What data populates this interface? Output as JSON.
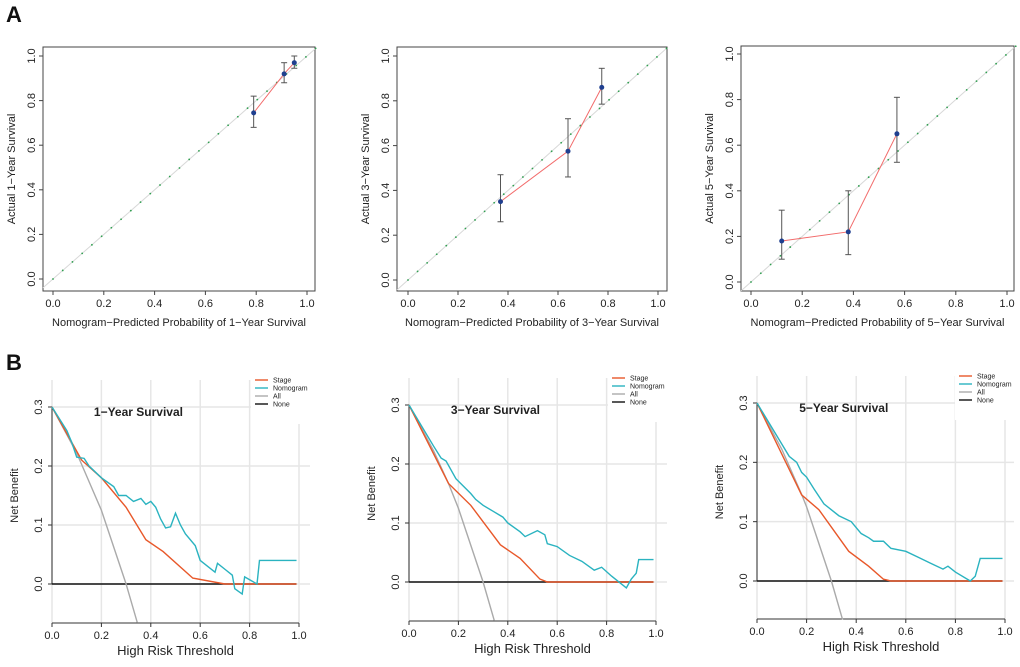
{
  "panel_labels": [
    "A",
    "B"
  ],
  "chart_data": [
    {
      "type": "scatter",
      "panel": "A",
      "xlabel": "Nomogram−Predicted Probability of 1−Year Survival",
      "ylabel": "Actual 1−Year Survival",
      "xlim": [
        0,
        1
      ],
      "ylim": [
        0,
        1
      ],
      "xticks": [
        "0.0",
        "0.2",
        "0.4",
        "0.6",
        "0.8",
        "1.0"
      ],
      "yticks": [
        "0.0",
        "0.2",
        "0.4",
        "0.6",
        "0.8",
        "1.0"
      ],
      "points": [
        {
          "x": 0.79,
          "y": 0.745,
          "lo": 0.68,
          "hi": 0.82
        },
        {
          "x": 0.91,
          "y": 0.92,
          "lo": 0.88,
          "hi": 0.97
        },
        {
          "x": 0.95,
          "y": 0.97,
          "lo": 0.945,
          "hi": 1.0
        }
      ],
      "colors": {
        "line": "#f26b6b",
        "point": "#1f3f8f",
        "ideal": "#2e9e4f"
      }
    },
    {
      "type": "scatter",
      "panel": "A",
      "xlabel": "Nomogram−Predicted Probability of 3−Year Survival",
      "ylabel": "Actual 3−Year Survival",
      "xlim": [
        0,
        1
      ],
      "ylim": [
        0,
        1
      ],
      "xticks": [
        "0.0",
        "0.2",
        "0.4",
        "0.6",
        "0.8",
        "1.0"
      ],
      "yticks": [
        "0.0",
        "0.2",
        "0.4",
        "0.6",
        "0.8",
        "1.0"
      ],
      "points": [
        {
          "x": 0.37,
          "y": 0.35,
          "lo": 0.26,
          "hi": 0.47
        },
        {
          "x": 0.64,
          "y": 0.575,
          "lo": 0.46,
          "hi": 0.72
        },
        {
          "x": 0.775,
          "y": 0.86,
          "lo": 0.785,
          "hi": 0.945
        }
      ],
      "colors": {
        "line": "#f26b6b",
        "point": "#1f3f8f",
        "ideal": "#2e9e4f"
      }
    },
    {
      "type": "scatter",
      "panel": "A",
      "xlabel": "Nomogram−Predicted Probability of 5−Year Survival",
      "ylabel": "Actual 5−Year Survival",
      "xlim": [
        0,
        1
      ],
      "ylim": [
        0,
        1
      ],
      "xticks": [
        "0.0",
        "0.2",
        "0.4",
        "0.6",
        "0.8",
        "1.0"
      ],
      "yticks": [
        "0.0",
        "0.2",
        "0.4",
        "0.6",
        "0.8",
        "1.0"
      ],
      "points": [
        {
          "x": 0.12,
          "y": 0.18,
          "lo": 0.1,
          "hi": 0.315
        },
        {
          "x": 0.38,
          "y": 0.22,
          "lo": 0.12,
          "hi": 0.4
        },
        {
          "x": 0.57,
          "y": 0.65,
          "lo": 0.525,
          "hi": 0.81
        }
      ],
      "colors": {
        "line": "#f26b6b",
        "point": "#1f3f8f",
        "ideal": "#2e9e4f"
      }
    },
    {
      "type": "line",
      "panel": "B",
      "title": "1−Year Survival",
      "xlabel": "High Risk Threshold",
      "ylabel": "Net Benefit",
      "xlim": [
        0,
        1
      ],
      "ylim": [
        -0.065,
        0.3
      ],
      "xticks": [
        "0.0",
        "0.2",
        "0.4",
        "0.6",
        "0.8",
        "1.0"
      ],
      "yticks": [
        "0.0",
        "0.1",
        "0.2",
        "0.3"
      ],
      "grid": true,
      "legend": "top-right",
      "series": [
        {
          "name": "Stage",
          "color": "#e8582a",
          "points": [
            [
              0,
              0.3
            ],
            [
              0.12,
              0.21
            ],
            [
              0.2,
              0.18
            ],
            [
              0.3,
              0.13
            ],
            [
              0.38,
              0.075
            ],
            [
              0.45,
              0.055
            ],
            [
              0.57,
              0.01
            ],
            [
              0.7,
              0
            ],
            [
              0.99,
              0
            ]
          ]
        },
        {
          "name": "Nomogram",
          "color": "#2ab3c0",
          "points": [
            [
              0,
              0.3
            ],
            [
              0.06,
              0.26
            ],
            [
              0.08,
              0.24
            ],
            [
              0.1,
              0.215
            ],
            [
              0.13,
              0.213
            ],
            [
              0.15,
              0.2
            ],
            [
              0.2,
              0.18
            ],
            [
              0.25,
              0.165
            ],
            [
              0.27,
              0.15
            ],
            [
              0.3,
              0.15
            ],
            [
              0.33,
              0.14
            ],
            [
              0.36,
              0.145
            ],
            [
              0.38,
              0.135
            ],
            [
              0.4,
              0.14
            ],
            [
              0.42,
              0.13
            ],
            [
              0.44,
              0.11
            ],
            [
              0.46,
              0.095
            ],
            [
              0.48,
              0.097
            ],
            [
              0.5,
              0.12
            ],
            [
              0.52,
              0.1
            ],
            [
              0.54,
              0.085
            ],
            [
              0.58,
              0.065
            ],
            [
              0.6,
              0.04
            ],
            [
              0.66,
              0.02
            ],
            [
              0.67,
              0.035
            ],
            [
              0.7,
              0.025
            ],
            [
              0.73,
              0.015
            ],
            [
              0.74,
              -0.008
            ],
            [
              0.77,
              -0.017
            ],
            [
              0.78,
              0.012
            ],
            [
              0.83,
              0
            ],
            [
              0.84,
              0.04
            ],
            [
              0.99,
              0.04
            ]
          ]
        },
        {
          "name": "All",
          "color": "#aaaaaa",
          "points": [
            [
              0,
              0.3
            ],
            [
              0.1,
              0.222
            ],
            [
              0.2,
              0.125
            ],
            [
              0.3,
              0
            ],
            [
              0.345,
              -0.065
            ]
          ]
        },
        {
          "name": "None",
          "color": "#111111",
          "points": [
            [
              0,
              0
            ],
            [
              0.99,
              0
            ]
          ]
        }
      ]
    },
    {
      "type": "line",
      "panel": "B",
      "title": "3−Year Survival",
      "xlabel": "High Risk Threshold",
      "ylabel": "Net Benefit",
      "xlim": [
        0,
        1
      ],
      "ylim": [
        -0.065,
        0.3
      ],
      "xticks": [
        "0.0",
        "0.2",
        "0.4",
        "0.6",
        "0.8",
        "1.0"
      ],
      "yticks": [
        "0.0",
        "0.1",
        "0.2",
        "0.3"
      ],
      "grid": true,
      "legend": "top-right",
      "series": [
        {
          "name": "Stage",
          "color": "#e8582a",
          "points": [
            [
              0,
              0.3
            ],
            [
              0.16,
              0.167
            ],
            [
              0.25,
              0.13
            ],
            [
              0.37,
              0.063
            ],
            [
              0.45,
              0.04
            ],
            [
              0.53,
              0.005
            ],
            [
              0.56,
              0
            ],
            [
              0.99,
              0
            ]
          ]
        },
        {
          "name": "Nomogram",
          "color": "#2ab3c0",
          "points": [
            [
              0,
              0.3
            ],
            [
              0.1,
              0.23
            ],
            [
              0.13,
              0.21
            ],
            [
              0.15,
              0.205
            ],
            [
              0.19,
              0.175
            ],
            [
              0.25,
              0.15
            ],
            [
              0.27,
              0.14
            ],
            [
              0.3,
              0.13
            ],
            [
              0.34,
              0.12
            ],
            [
              0.38,
              0.11
            ],
            [
              0.4,
              0.1
            ],
            [
              0.45,
              0.085
            ],
            [
              0.47,
              0.077
            ],
            [
              0.52,
              0.087
            ],
            [
              0.55,
              0.08
            ],
            [
              0.56,
              0.065
            ],
            [
              0.6,
              0.06
            ],
            [
              0.65,
              0.045
            ],
            [
              0.7,
              0.035
            ],
            [
              0.75,
              0.02
            ],
            [
              0.78,
              0.025
            ],
            [
              0.82,
              0.01
            ],
            [
              0.88,
              -0.01
            ],
            [
              0.9,
              0.005
            ],
            [
              0.92,
              0.015
            ],
            [
              0.93,
              0.038
            ],
            [
              0.99,
              0.038
            ]
          ]
        },
        {
          "name": "All",
          "color": "#aaaaaa",
          "points": [
            [
              0,
              0.3
            ],
            [
              0.1,
              0.222
            ],
            [
              0.16,
              0.167
            ],
            [
              0.2,
              0.125
            ],
            [
              0.3,
              0
            ],
            [
              0.345,
              -0.065
            ]
          ]
        },
        {
          "name": "None",
          "color": "#111111",
          "points": [
            [
              0,
              0
            ],
            [
              0.99,
              0
            ]
          ]
        }
      ]
    },
    {
      "type": "line",
      "panel": "B",
      "title": "5−Year Survival",
      "xlabel": "High Risk Threshold",
      "ylabel": "Net Benefit",
      "xlim": [
        0,
        1
      ],
      "ylim": [
        -0.065,
        0.3
      ],
      "xticks": [
        "0.0",
        "0.2",
        "0.4",
        "0.6",
        "0.8",
        "1.0"
      ],
      "yticks": [
        "0.0",
        "0.1",
        "0.2",
        "0.3"
      ],
      "grid": true,
      "legend": "top-right",
      "series": [
        {
          "name": "Stage",
          "color": "#e8582a",
          "points": [
            [
              0,
              0.3
            ],
            [
              0.18,
              0.145
            ],
            [
              0.25,
              0.12
            ],
            [
              0.37,
              0.05
            ],
            [
              0.45,
              0.025
            ],
            [
              0.51,
              0.003
            ],
            [
              0.54,
              0
            ],
            [
              0.99,
              0
            ]
          ]
        },
        {
          "name": "Nomogram",
          "color": "#2ab3c0",
          "points": [
            [
              0,
              0.3
            ],
            [
              0.13,
              0.21
            ],
            [
              0.16,
              0.2
            ],
            [
              0.18,
              0.183
            ],
            [
              0.2,
              0.175
            ],
            [
              0.23,
              0.155
            ],
            [
              0.27,
              0.13
            ],
            [
              0.3,
              0.12
            ],
            [
              0.33,
              0.11
            ],
            [
              0.38,
              0.1
            ],
            [
              0.42,
              0.08
            ],
            [
              0.45,
              0.073
            ],
            [
              0.47,
              0.067
            ],
            [
              0.51,
              0.067
            ],
            [
              0.54,
              0.055
            ],
            [
              0.6,
              0.05
            ],
            [
              0.65,
              0.04
            ],
            [
              0.7,
              0.03
            ],
            [
              0.75,
              0.02
            ],
            [
              0.77,
              0.025
            ],
            [
              0.8,
              0.015
            ],
            [
              0.86,
              0
            ],
            [
              0.88,
              0.008
            ],
            [
              0.9,
              0.038
            ],
            [
              0.99,
              0.038
            ]
          ]
        },
        {
          "name": "All",
          "color": "#aaaaaa",
          "points": [
            [
              0,
              0.3
            ],
            [
              0.1,
              0.222
            ],
            [
              0.18,
              0.146
            ],
            [
              0.2,
              0.125
            ],
            [
              0.3,
              0
            ],
            [
              0.345,
              -0.065
            ]
          ]
        },
        {
          "name": "None",
          "color": "#111111",
          "points": [
            [
              0,
              0
            ],
            [
              0.99,
              0
            ]
          ]
        }
      ]
    }
  ]
}
